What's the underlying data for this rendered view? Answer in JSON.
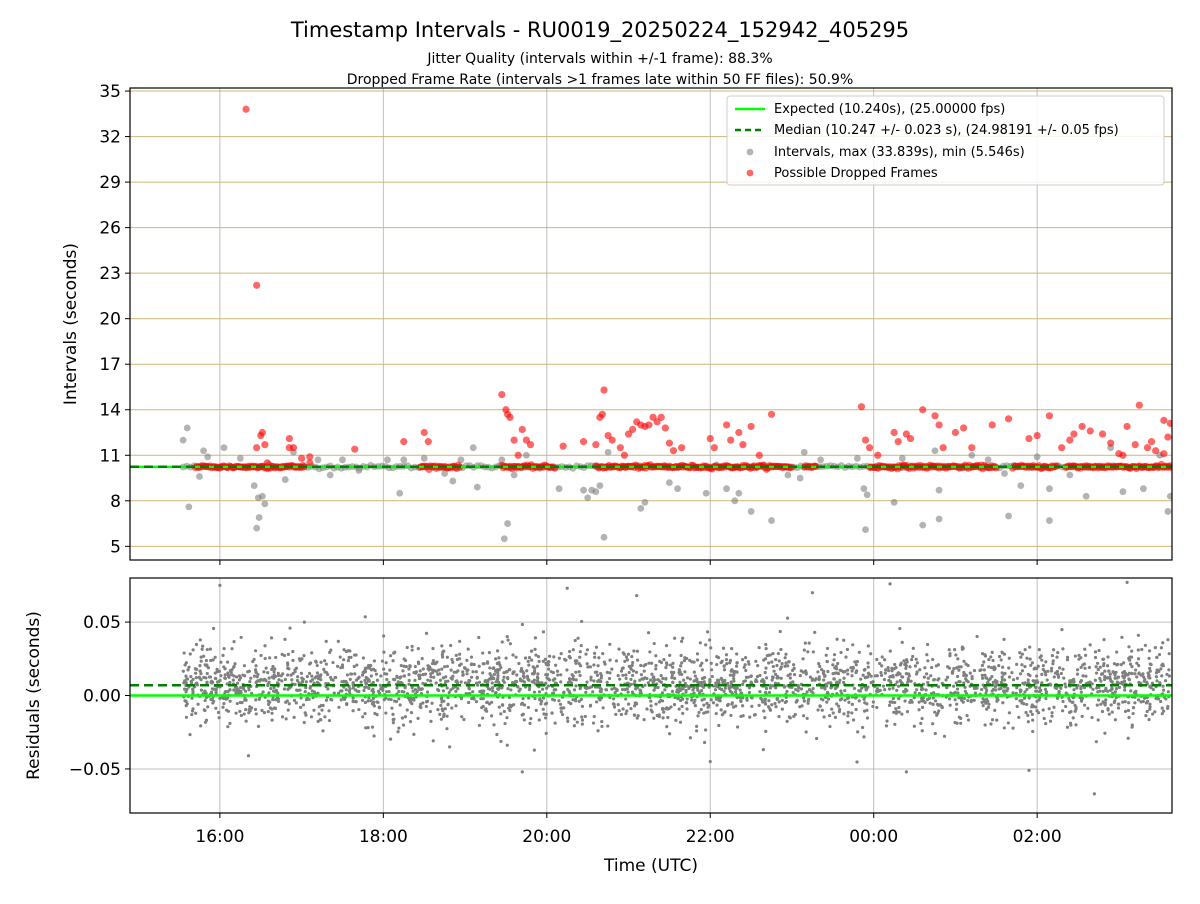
{
  "chart_data": {
    "type": "scatter",
    "title": "Timestamp Intervals - RU0019_20250224_152942_405295",
    "subtitle_lines": [
      "Jitter Quality (intervals within +/-1 frame): 88.3%",
      "Dropped Frame Rate (intervals >1 frames late within 50 FF files): 50.9%"
    ],
    "xlabel": "Time (UTC)",
    "x_range_hours": [
      14.9,
      27.65
    ],
    "x_ticks": [
      {
        "value": 16,
        "label": "16:00"
      },
      {
        "value": 18,
        "label": "18:00"
      },
      {
        "value": 20,
        "label": "20:00"
      },
      {
        "value": 22,
        "label": "22:00"
      },
      {
        "value": 24,
        "label": "00:00"
      },
      {
        "value": 26,
        "label": "02:00"
      }
    ],
    "panels": [
      {
        "id": "intervals",
        "ylabel": "Intervals (seconds)",
        "ylim": [
          4.1,
          35.2
        ],
        "yticks": [
          5,
          8,
          11,
          14,
          17,
          20,
          23,
          26,
          29,
          32,
          35
        ],
        "grid": "horizontal-gold-and-vertical-grey",
        "legend_position": "top-right",
        "series": [
          {
            "name": "Expected (10.240s), (25.00000 fps)",
            "kind": "hline",
            "value": 10.24,
            "color": "#00ff00",
            "style": "solid"
          },
          {
            "name": "Median (10.247 +/- 0.023 s), (24.98191 +/- 0.05 fps)",
            "kind": "hline",
            "value": 10.247,
            "color": "#008000",
            "style": "dashed"
          },
          {
            "name": "Intervals, max (33.839s), min (5.546s)",
            "kind": "points",
            "color": "#808080",
            "points": [
              [
                15.55,
                12.0
              ],
              [
                15.6,
                12.8
              ],
              [
                15.62,
                7.6
              ],
              [
                15.75,
                9.6
              ],
              [
                15.8,
                11.3
              ],
              [
                15.85,
                10.9
              ],
              [
                16.05,
                11.5
              ],
              [
                16.25,
                10.8
              ],
              [
                16.42,
                9.0
              ],
              [
                16.45,
                6.2
              ],
              [
                16.47,
                8.2
              ],
              [
                16.48,
                6.9
              ],
              [
                16.52,
                8.3
              ],
              [
                16.55,
                7.8
              ],
              [
                16.6,
                10.4
              ],
              [
                16.8,
                9.4
              ],
              [
                16.9,
                11.2
              ],
              [
                17.2,
                10.7
              ],
              [
                17.35,
                9.7
              ],
              [
                17.5,
                10.7
              ],
              [
                17.7,
                10.0
              ],
              [
                18.05,
                10.7
              ],
              [
                18.2,
                8.5
              ],
              [
                18.25,
                10.7
              ],
              [
                18.5,
                10.8
              ],
              [
                18.75,
                9.8
              ],
              [
                18.95,
                10.7
              ],
              [
                18.85,
                9.3
              ],
              [
                19.1,
                11.5
              ],
              [
                19.15,
                8.9
              ],
              [
                19.45,
                10.7
              ],
              [
                19.48,
                5.5
              ],
              [
                19.52,
                6.5
              ],
              [
                19.6,
                9.7
              ],
              [
                19.75,
                11.0
              ],
              [
                20.15,
                8.8
              ],
              [
                20.45,
                8.7
              ],
              [
                20.5,
                8.2
              ],
              [
                20.55,
                8.7
              ],
              [
                20.6,
                8.6
              ],
              [
                20.65,
                9.0
              ],
              [
                20.7,
                5.6
              ],
              [
                20.75,
                11.2
              ],
              [
                21.15,
                7.5
              ],
              [
                21.2,
                7.9
              ],
              [
                21.5,
                9.2
              ],
              [
                21.6,
                8.8
              ],
              [
                21.95,
                8.5
              ],
              [
                22.2,
                8.8
              ],
              [
                22.3,
                8.0
              ],
              [
                22.35,
                8.5
              ],
              [
                22.5,
                7.3
              ],
              [
                22.75,
                6.7
              ],
              [
                22.95,
                9.7
              ],
              [
                23.1,
                9.5
              ],
              [
                23.15,
                11.2
              ],
              [
                23.35,
                10.7
              ],
              [
                23.8,
                10.8
              ],
              [
                23.88,
                8.8
              ],
              [
                23.9,
                6.1
              ],
              [
                23.92,
                8.4
              ],
              [
                24.25,
                7.9
              ],
              [
                24.35,
                10.8
              ],
              [
                24.6,
                6.4
              ],
              [
                24.75,
                11.3
              ],
              [
                24.8,
                8.7
              ],
              [
                24.8,
                6.8
              ],
              [
                25.2,
                11.0
              ],
              [
                25.4,
                10.7
              ],
              [
                25.6,
                9.8
              ],
              [
                25.65,
                7.0
              ],
              [
                25.8,
                9.0
              ],
              [
                26.0,
                10.9
              ],
              [
                26.15,
                8.8
              ],
              [
                26.15,
                6.7
              ],
              [
                26.4,
                9.7
              ],
              [
                26.6,
                8.3
              ],
              [
                26.9,
                11.5
              ],
              [
                27.05,
                8.6
              ],
              [
                27.3,
                8.8
              ],
              [
                27.6,
                7.3
              ],
              [
                27.63,
                8.3
              ],
              [
                27.5,
                11.0
              ]
            ]
          },
          {
            "name": "Possible Dropped Frames",
            "kind": "points",
            "color": "#ff0000",
            "points": [
              [
                16.32,
                33.8
              ],
              [
                16.45,
                22.2
              ],
              [
                16.5,
                12.3
              ],
              [
                16.52,
                12.5
              ],
              [
                16.55,
                11.7
              ],
              [
                16.45,
                11.5
              ],
              [
                16.58,
                10.5
              ],
              [
                16.85,
                12.1
              ],
              [
                16.85,
                11.5
              ],
              [
                16.9,
                11.5
              ],
              [
                17.0,
                10.8
              ],
              [
                17.1,
                10.9
              ],
              [
                17.1,
                10.5
              ],
              [
                17.65,
                11.4
              ],
              [
                18.25,
                11.9
              ],
              [
                18.5,
                12.5
              ],
              [
                18.55,
                11.9
              ],
              [
                19.45,
                15.0
              ],
              [
                19.5,
                14.0
              ],
              [
                19.55,
                13.5
              ],
              [
                19.52,
                13.7
              ],
              [
                19.6,
                12.0
              ],
              [
                19.7,
                12.7
              ],
              [
                19.75,
                12.0
              ],
              [
                19.65,
                11.0
              ],
              [
                19.8,
                11.7
              ],
              [
                20.2,
                11.6
              ],
              [
                20.45,
                11.9
              ],
              [
                20.6,
                11.7
              ],
              [
                20.65,
                13.5
              ],
              [
                20.7,
                15.3
              ],
              [
                20.75,
                12.3
              ],
              [
                20.8,
                12.0
              ],
              [
                20.9,
                11.5
              ],
              [
                20.68,
                13.7
              ],
              [
                20.95,
                11.0
              ],
              [
                21.0,
                12.4
              ],
              [
                21.05,
                12.7
              ],
              [
                21.1,
                13.2
              ],
              [
                21.15,
                13.0
              ],
              [
                21.2,
                12.9
              ],
              [
                21.25,
                13.0
              ],
              [
                21.3,
                13.5
              ],
              [
                21.35,
                13.2
              ],
              [
                21.4,
                13.5
              ],
              [
                21.45,
                12.8
              ],
              [
                21.5,
                11.8
              ],
              [
                21.55,
                11.3
              ],
              [
                21.65,
                11.5
              ],
              [
                22.0,
                12.1
              ],
              [
                22.05,
                11.5
              ],
              [
                22.2,
                13.0
              ],
              [
                22.25,
                12.0
              ],
              [
                22.35,
                12.5
              ],
              [
                22.4,
                11.7
              ],
              [
                22.5,
                12.9
              ],
              [
                22.6,
                11.0
              ],
              [
                22.75,
                13.7
              ],
              [
                23.85,
                14.2
              ],
              [
                23.9,
                12.0
              ],
              [
                23.95,
                11.5
              ],
              [
                24.05,
                11.0
              ],
              [
                24.25,
                12.5
              ],
              [
                24.3,
                11.9
              ],
              [
                24.4,
                12.4
              ],
              [
                24.45,
                12.1
              ],
              [
                24.6,
                14.0
              ],
              [
                24.75,
                13.6
              ],
              [
                24.8,
                13.0
              ],
              [
                24.85,
                11.5
              ],
              [
                25.0,
                12.5
              ],
              [
                25.1,
                12.8
              ],
              [
                25.2,
                11.5
              ],
              [
                25.45,
                13.0
              ],
              [
                25.65,
                13.4
              ],
              [
                25.9,
                12.1
              ],
              [
                26.0,
                12.3
              ],
              [
                26.15,
                13.6
              ],
              [
                26.3,
                11.5
              ],
              [
                26.4,
                12.0
              ],
              [
                26.45,
                12.4
              ],
              [
                26.55,
                12.9
              ],
              [
                26.65,
                12.6
              ],
              [
                26.8,
                12.4
              ],
              [
                26.9,
                11.8
              ],
              [
                27.0,
                11.1
              ],
              [
                27.05,
                11.0
              ],
              [
                27.1,
                12.9
              ],
              [
                27.2,
                11.7
              ],
              [
                27.25,
                14.3
              ],
              [
                27.35,
                11.5
              ],
              [
                27.4,
                11.9
              ],
              [
                27.45,
                11.3
              ],
              [
                27.55,
                13.3
              ],
              [
                27.6,
                12.2
              ],
              [
                27.63,
                13.1
              ],
              [
                27.55,
                11.1
              ]
            ],
            "dense_segments_hours": [
              [
                15.7,
                17.05
              ],
              [
                18.45,
                18.95
              ],
              [
                19.45,
                20.1
              ],
              [
                20.6,
                23.0
              ],
              [
                23.15,
                23.3
              ],
              [
                23.95,
                25.5
              ],
              [
                25.7,
                26.25
              ],
              [
                26.35,
                27.65
              ]
            ],
            "dense_segment_value": 10.24
          }
        ]
      },
      {
        "id": "residuals",
        "ylabel": "Residuals (seconds)",
        "ylim": [
          -0.08,
          0.08
        ],
        "yticks": [
          {
            "value": 0.05,
            "label": "0.05"
          },
          {
            "value": 0.0,
            "label": "0.00"
          },
          {
            "value": -0.05,
            "label": "−0.05"
          }
        ],
        "grid": "both-grey",
        "series": [
          {
            "name": "",
            "kind": "hline",
            "value": 0.0,
            "color": "#00ff00",
            "style": "solid"
          },
          {
            "name": "",
            "kind": "hline",
            "value": 0.007,
            "color": "#008000",
            "style": "dashed"
          },
          {
            "name": "",
            "kind": "points",
            "color": "#808080",
            "x_range_hours": [
              15.55,
              27.65
            ],
            "approx_count": 3000,
            "typical_std": 0.013,
            "outliers": [
              [
                16.0,
                0.075
              ],
              [
                20.25,
                0.073
              ],
              [
                21.1,
                0.068
              ],
              [
                23.25,
                0.07
              ],
              [
                24.2,
                0.076
              ],
              [
                27.1,
                0.077
              ],
              [
                19.7,
                -0.052
              ],
              [
                22.0,
                -0.045
              ],
              [
                24.4,
                -0.052
              ],
              [
                25.9,
                -0.051
              ],
              [
                26.7,
                -0.067
              ],
              [
                16.35,
                -0.041
              ]
            ]
          }
        ]
      }
    ]
  }
}
